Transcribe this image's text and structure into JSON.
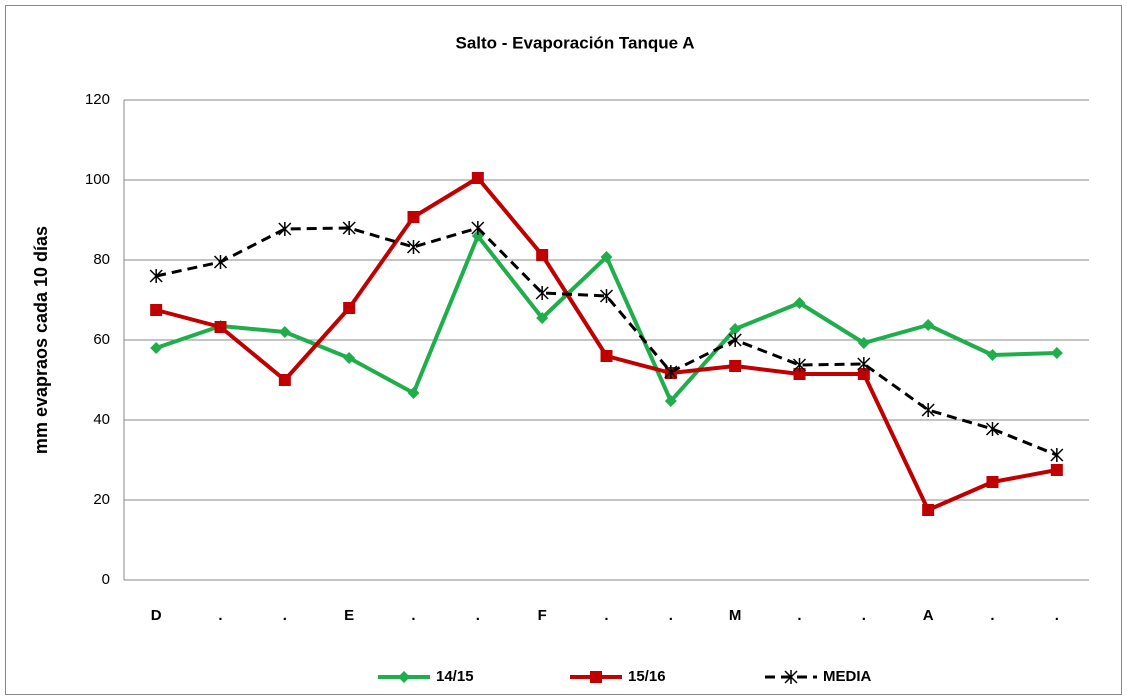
{
  "chart_data": {
    "type": "line",
    "title": "Salto - Evaporación Tanque A",
    "y_label": "mm evapraos cada 10 días",
    "categories": [
      "D",
      ".",
      ".",
      "E",
      ".",
      ".",
      "F",
      ".",
      ".",
      "M",
      ".",
      ".",
      "A",
      ".",
      "."
    ],
    "series": [
      {
        "name": "14/15",
        "color": "#1fae4b",
        "marker": "diamond",
        "dash": false,
        "values": [
          58,
          63.5,
          62,
          55.5,
          46.75,
          86,
          65.5,
          80.75,
          44.75,
          62.75,
          69.25,
          59.25,
          63.75,
          56.25,
          56.75
        ]
      },
      {
        "name": "15/16",
        "color": "#c00000",
        "marker": "square",
        "dash": false,
        "values": [
          67.5,
          63.25,
          50,
          68,
          90.75,
          100.5,
          81.25,
          56,
          51.75,
          53.5,
          51.5,
          51.5,
          17.5,
          24.5,
          27.5
        ]
      },
      {
        "name": "MEDIA",
        "color": "#000000",
        "marker": "asterisk",
        "dash": true,
        "values": [
          76,
          79.5,
          87.75,
          88,
          83.25,
          88,
          71.75,
          71,
          52,
          60,
          53.75,
          54,
          42.5,
          37.75,
          31.25
        ]
      }
    ],
    "ylim": [
      0,
      120
    ],
    "yticks": [
      0,
      20,
      40,
      60,
      80,
      100,
      120
    ],
    "grid": true,
    "legend": "bottom"
  }
}
